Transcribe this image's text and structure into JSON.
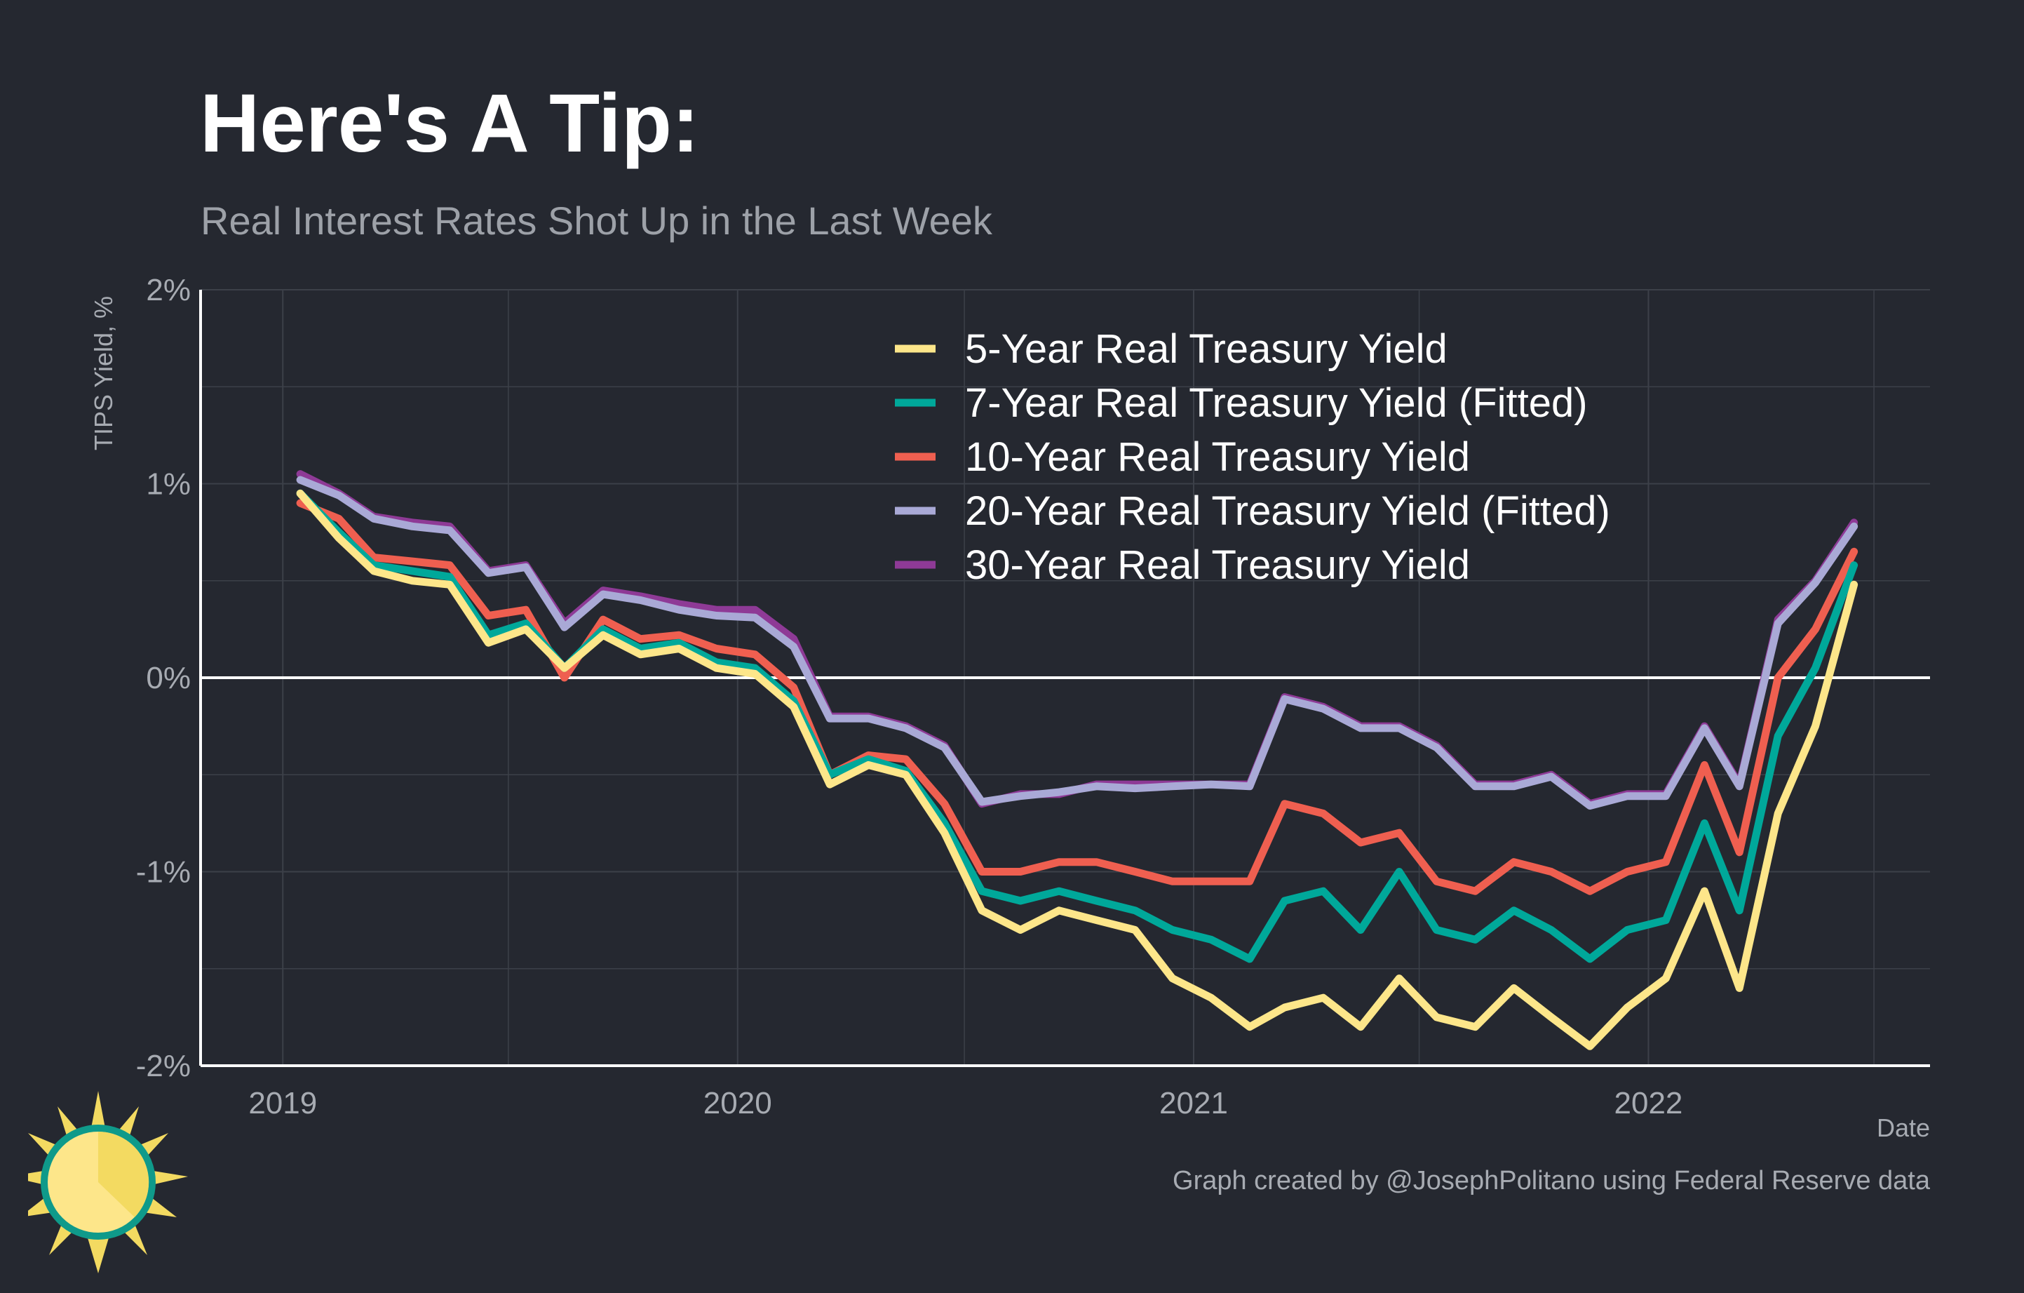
{
  "title": "Here's A Tip:",
  "subtitle": "Real Interest Rates Shot Up in the Last Week",
  "caption": "Graph created by @JosephPolitano using Federal Reserve data",
  "colors": {
    "background": "#252830",
    "grid": "#3c4049",
    "axis": "#ffffff",
    "zero_line": "#ffffff"
  },
  "chart_data": {
    "type": "line",
    "title": "Here's A Tip:",
    "subtitle": "Real Interest Rates Shot Up in the Last Week",
    "xlabel": "Date",
    "ylabel": "TIPS Yield, %",
    "x_ticks": [
      "2019",
      "2020",
      "2021",
      "2022"
    ],
    "y_ticks": [
      "2%",
      "1%",
      "0%",
      "-1%",
      "-2%"
    ],
    "xlim": [
      "2018-10-27",
      "2022-08-15"
    ],
    "ylim": [
      -2,
      2
    ],
    "grid": true,
    "legend_position": "top-center",
    "x": [
      "2019-01",
      "2019-02",
      "2019-03",
      "2019-04",
      "2019-05",
      "2019-06",
      "2019-07",
      "2019-08",
      "2019-09",
      "2019-10",
      "2019-11",
      "2019-12",
      "2020-01",
      "2020-02",
      "2020-03",
      "2020-04",
      "2020-05",
      "2020-06",
      "2020-07",
      "2020-08",
      "2020-09",
      "2020-10",
      "2020-11",
      "2020-12",
      "2021-01",
      "2021-02",
      "2021-03",
      "2021-04",
      "2021-05",
      "2021-06",
      "2021-07",
      "2021-08",
      "2021-09",
      "2021-10",
      "2021-11",
      "2021-12",
      "2022-01",
      "2022-02",
      "2022-03",
      "2022-04",
      "2022-05",
      "2022-06"
    ],
    "series": [
      {
        "name": "5-Year Real Treasury Yield",
        "color": "#fde68a",
        "values": [
          0.95,
          0.72,
          0.55,
          0.5,
          0.48,
          0.18,
          0.25,
          0.05,
          0.22,
          0.12,
          0.15,
          0.05,
          0.02,
          -0.15,
          -0.55,
          -0.45,
          -0.5,
          -0.8,
          -1.2,
          -1.3,
          -1.2,
          -1.25,
          -1.3,
          -1.55,
          -1.65,
          -1.8,
          -1.7,
          -1.65,
          -1.8,
          -1.55,
          -1.75,
          -1.8,
          -1.6,
          -1.75,
          -1.9,
          -1.7,
          -1.55,
          -1.1,
          -1.6,
          -0.7,
          -0.25,
          0.48
        ]
      },
      {
        "name": "7-Year Real Treasury Yield (Fitted)",
        "color": "#00a89a",
        "values": [
          0.95,
          0.75,
          0.58,
          0.55,
          0.52,
          0.22,
          0.28,
          0.05,
          0.25,
          0.15,
          0.18,
          0.08,
          0.05,
          -0.12,
          -0.5,
          -0.42,
          -0.48,
          -0.75,
          -1.1,
          -1.15,
          -1.1,
          -1.15,
          -1.2,
          -1.3,
          -1.35,
          -1.45,
          -1.15,
          -1.1,
          -1.3,
          -1.0,
          -1.3,
          -1.35,
          -1.2,
          -1.3,
          -1.45,
          -1.3,
          -1.25,
          -0.75,
          -1.2,
          -0.3,
          0.05,
          0.58
        ]
      },
      {
        "name": "10-Year Real Treasury Yield",
        "color": "#ef5f50",
        "values": [
          0.9,
          0.82,
          0.62,
          0.6,
          0.58,
          0.32,
          0.35,
          0.0,
          0.3,
          0.2,
          0.22,
          0.15,
          0.12,
          -0.05,
          -0.5,
          -0.4,
          -0.42,
          -0.65,
          -1.0,
          -1.0,
          -0.95,
          -0.95,
          -1.0,
          -1.05,
          -1.05,
          -1.05,
          -0.65,
          -0.7,
          -0.85,
          -0.8,
          -1.05,
          -1.1,
          -0.95,
          -1.0,
          -1.1,
          -1.0,
          -0.95,
          -0.45,
          -0.9,
          0.0,
          0.25,
          0.65
        ]
      },
      {
        "name": "20-Year Real Treasury Yield (Fitted)",
        "color": "#a9a9d6",
        "values": [
          1.02,
          0.94,
          0.82,
          0.78,
          0.76,
          0.54,
          0.57,
          0.26,
          0.43,
          0.4,
          0.35,
          0.32,
          0.31,
          0.16,
          -0.21,
          -0.21,
          -0.26,
          -0.36,
          -0.64,
          -0.61,
          -0.59,
          -0.56,
          -0.57,
          -0.56,
          -0.55,
          -0.56,
          -0.11,
          -0.16,
          -0.26,
          -0.26,
          -0.36,
          -0.56,
          -0.56,
          -0.51,
          -0.66,
          -0.61,
          -0.61,
          -0.26,
          -0.56,
          0.28,
          0.49,
          0.78
        ]
      },
      {
        "name": "30-Year Real Treasury Yield",
        "color": "#8e3a96",
        "values": [
          1.05,
          0.95,
          0.83,
          0.8,
          0.78,
          0.55,
          0.58,
          0.28,
          0.45,
          0.42,
          0.38,
          0.35,
          0.35,
          0.2,
          -0.2,
          -0.2,
          -0.25,
          -0.35,
          -0.65,
          -0.6,
          -0.6,
          -0.55,
          -0.55,
          -0.55,
          -0.55,
          -0.55,
          -0.1,
          -0.15,
          -0.25,
          -0.25,
          -0.35,
          -0.55,
          -0.55,
          -0.5,
          -0.65,
          -0.6,
          -0.6,
          -0.25,
          -0.55,
          0.3,
          0.5,
          0.8
        ]
      }
    ]
  }
}
